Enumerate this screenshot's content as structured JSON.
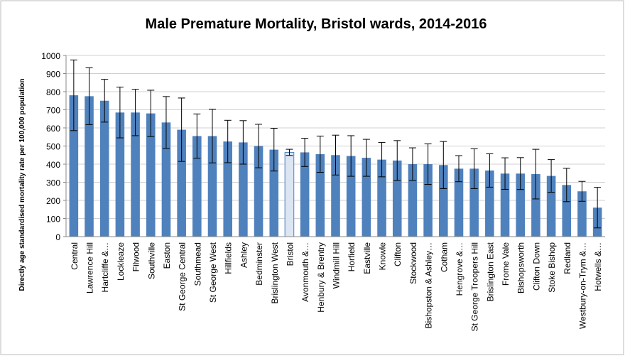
{
  "chart_data": {
    "type": "bar",
    "title": "Male Premature Mortality, Bristol wards, 2014-2016",
    "y_label": "Directly age standardised mortality rate per 100,000 population",
    "categories": [
      "Central",
      "Lawrence Hill",
      "Hartcliffe &…",
      "Lockleaze",
      "Filwood",
      "Southville",
      "Easton",
      "St George Central",
      "Southmead",
      "St George West",
      "Hillfields",
      "Ashley",
      "Bedminster",
      "Brislington West",
      "Bristol",
      "Avonmouth &…",
      "Henbury & Brentry",
      "Windmill Hill",
      "Horfield",
      "Eastville",
      "Knowle",
      "Clifton",
      "Stockwood",
      "Bishopston & Ashley…",
      "Cotham",
      "Hengrove &…",
      "St George Troopers Hill",
      "Brislington East",
      "Frome Vale",
      "Bishopsworth",
      "Clifton Down",
      "Stoke Bishop",
      "Redland",
      "Westbury-on-Trym &…",
      "Hotwells &…"
    ],
    "values": [
      780,
      775,
      750,
      685,
      685,
      680,
      630,
      590,
      555,
      555,
      525,
      520,
      500,
      480,
      465,
      465,
      455,
      450,
      445,
      435,
      425,
      420,
      400,
      400,
      395,
      375,
      375,
      365,
      348,
      348,
      345,
      335,
      285,
      250,
      160
    ],
    "errors": [
      195,
      157,
      118,
      140,
      128,
      128,
      143,
      175,
      122,
      148,
      117,
      120,
      120,
      118,
      17,
      78,
      100,
      110,
      112,
      102,
      95,
      110,
      90,
      112,
      130,
      72,
      110,
      92,
      87,
      88,
      137,
      90,
      92,
      55,
      112
    ],
    "color": "#4f81bd",
    "highlight": {
      "category": "Bristol",
      "color": "#dce6f2"
    },
    "ylim": [
      0,
      1000
    ],
    "yticks": [
      0,
      100,
      200,
      300,
      400,
      500,
      600,
      700,
      800,
      900,
      1000
    ],
    "grid": true
  }
}
